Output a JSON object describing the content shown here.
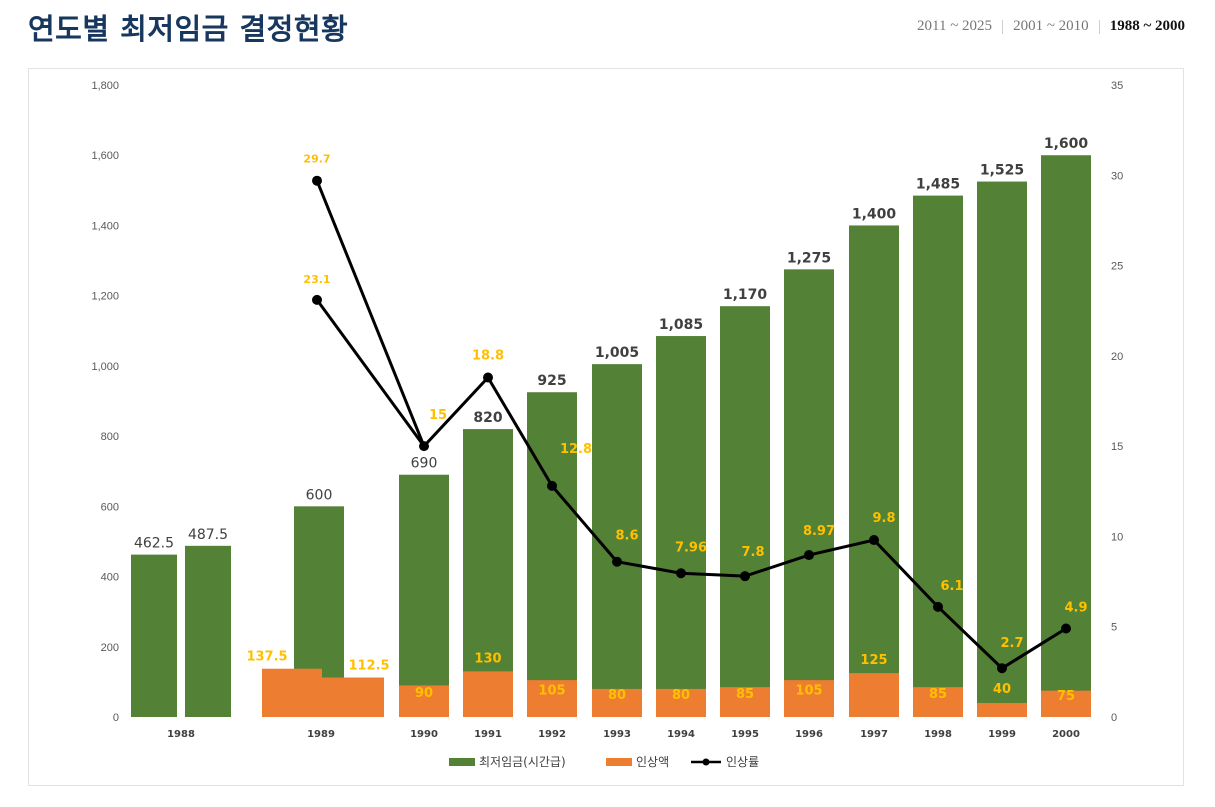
{
  "page": {
    "title": "연도별 최저임금 결정현황",
    "tabs": [
      {
        "label": "2011 ~ 2025",
        "active": false
      },
      {
        "label": "2001 ~ 2010",
        "active": false
      },
      {
        "label": "1988 ~ 2000",
        "active": true
      }
    ]
  },
  "colors": {
    "wage": "#538135",
    "increase": "#ed7d31",
    "rate": "#000000",
    "rate_label": "#ffc000",
    "title": "#17375e"
  },
  "chart_data": {
    "type": "bar",
    "categories": [
      "1988",
      "1989",
      "1990",
      "1991",
      "1992",
      "1993",
      "1994",
      "1995",
      "1996",
      "1997",
      "1998",
      "1999",
      "2000"
    ],
    "left_axis": {
      "ticks": [
        "0",
        "200",
        "400",
        "600",
        "800",
        "1,000",
        "1,200",
        "1,400",
        "1,600",
        "1,800"
      ],
      "ylim": [
        0,
        1800
      ]
    },
    "right_axis": {
      "ticks": [
        "0",
        "5",
        "10",
        "15",
        "20",
        "25",
        "30",
        "35"
      ],
      "ylim": [
        0,
        35
      ]
    },
    "legend": {
      "position": "bottom",
      "items": [
        "최저임금(시간급)",
        "인상액",
        "인상률"
      ]
    },
    "series": [
      {
        "name": "최저임금(시간급)",
        "type": "bar",
        "points": [
          {
            "category": "1988",
            "value": 462.5,
            "label": "462.5"
          },
          {
            "category": "1988",
            "value": 487.5,
            "label": "487.5"
          },
          {
            "category": "1989",
            "value": 600,
            "label": "600"
          },
          {
            "category": "1990",
            "value": 690,
            "label": "690"
          },
          {
            "category": "1991",
            "value": 820,
            "label": "820"
          },
          {
            "category": "1992",
            "value": 925,
            "label": "925"
          },
          {
            "category": "1993",
            "value": 1005,
            "label": "1,005"
          },
          {
            "category": "1994",
            "value": 1085,
            "label": "1,085"
          },
          {
            "category": "1995",
            "value": 1170,
            "label": "1,170"
          },
          {
            "category": "1996",
            "value": 1275,
            "label": "1,275"
          },
          {
            "category": "1997",
            "value": 1400,
            "label": "1,400"
          },
          {
            "category": "1998",
            "value": 1485,
            "label": "1,485"
          },
          {
            "category": "1999",
            "value": 1525,
            "label": "1,525"
          },
          {
            "category": "2000",
            "value": 1600,
            "label": "1,600"
          }
        ]
      },
      {
        "name": "인상액",
        "type": "bar",
        "points": [
          {
            "category": "1989",
            "value": 137.5,
            "label": "137.5"
          },
          {
            "category": "1989",
            "value": 112.5,
            "label": "112.5"
          },
          {
            "category": "1990",
            "value": 90,
            "label": "90"
          },
          {
            "category": "1991",
            "value": 130,
            "label": "130"
          },
          {
            "category": "1992",
            "value": 105,
            "label": "105"
          },
          {
            "category": "1993",
            "value": 80,
            "label": "80"
          },
          {
            "category": "1994",
            "value": 80,
            "label": "80"
          },
          {
            "category": "1995",
            "value": 85,
            "label": "85"
          },
          {
            "category": "1996",
            "value": 105,
            "label": "105"
          },
          {
            "category": "1997",
            "value": 125,
            "label": "125"
          },
          {
            "category": "1998",
            "value": 85,
            "label": "85"
          },
          {
            "category": "1999",
            "value": 40,
            "label": "40"
          },
          {
            "category": "2000",
            "value": 75,
            "label": "75"
          }
        ]
      },
      {
        "name": "인상률",
        "type": "line",
        "points": [
          {
            "category": "1989",
            "value": 29.7,
            "label": "29.7"
          },
          {
            "category": "1989",
            "value": 23.1,
            "label": "23.1"
          },
          {
            "category": "1990",
            "value": 15,
            "label": "15"
          },
          {
            "category": "1991",
            "value": 18.8,
            "label": "18.8"
          },
          {
            "category": "1992",
            "value": 12.8,
            "label": "12.8"
          },
          {
            "category": "1993",
            "value": 8.6,
            "label": "8.6"
          },
          {
            "category": "1994",
            "value": 7.96,
            "label": "7.96"
          },
          {
            "category": "1995",
            "value": 7.8,
            "label": "7.8"
          },
          {
            "category": "1996",
            "value": 8.97,
            "label": "8.97"
          },
          {
            "category": "1997",
            "value": 9.8,
            "label": "9.8"
          },
          {
            "category": "1998",
            "value": 6.1,
            "label": "6.1"
          },
          {
            "category": "1999",
            "value": 2.7,
            "label": "2.7"
          },
          {
            "category": "2000",
            "value": 4.9,
            "label": "4.9"
          }
        ]
      }
    ]
  }
}
